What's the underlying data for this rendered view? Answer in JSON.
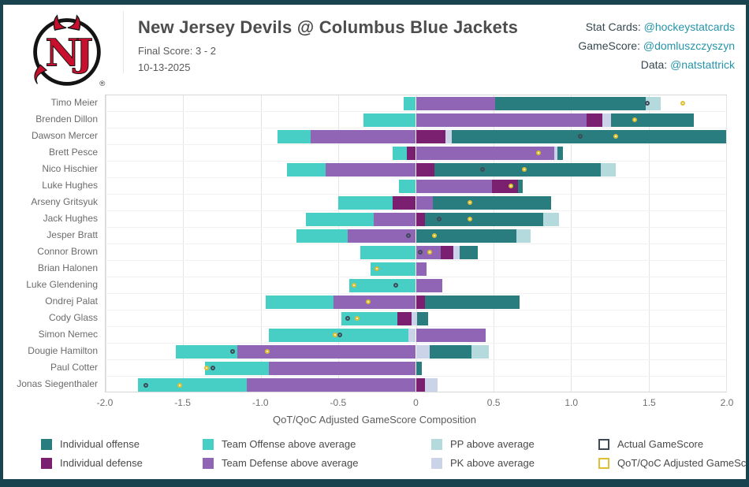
{
  "header": {
    "title": "New Jersey Devils @ Columbus Blue Jackets",
    "final_score": "Final Score: 3 - 2",
    "date": "10-13-2025",
    "credits": [
      {
        "label": "Stat Cards: ",
        "handle": "@hockeystatcards"
      },
      {
        "label": "GameScore: ",
        "handle": "@domluszczyszyn"
      },
      {
        "label": "Data: ",
        "handle": "@natstattrick"
      }
    ],
    "logo": "new-jersey-devils"
  },
  "colors": {
    "io": "#2a7d7e",
    "id": "#7b2071",
    "to": "#47cec5",
    "td": "#9065b5",
    "pp": "#b5dade",
    "pk": "#cbd3e8",
    "actual_outline": "#3e4a57",
    "adjusted_outline": "#dfc033",
    "adjusted_fill": "#fcf8e2",
    "frame": "#18434f",
    "link": "#2694a8",
    "logo_red": "#c8102e"
  },
  "chart_data": {
    "type": "bar",
    "orientation": "horizontal-stacked-diverging",
    "title": "",
    "xlabel": "QoT/QoC Adjusted GameScore Composition",
    "xlim": [
      -2.0,
      2.0
    ],
    "xticks": [
      -2.0,
      -1.5,
      -1.0,
      -0.5,
      0,
      0.5,
      1.0,
      1.5,
      2.0
    ],
    "xtick_labels": [
      "-2.0",
      "-1.5",
      "-1.0",
      "-0.5",
      "0",
      "0.5",
      "1.0",
      "1.5",
      "2.0"
    ],
    "grid": "vertical",
    "segment_keys": {
      "io": "Individual offense",
      "id": "Individual defense",
      "to": "Team Offense above average",
      "td": "Team Defense above average",
      "pp": "PP above average",
      "pk": "PK above average"
    },
    "players": [
      {
        "name": "Timo Meier",
        "segments": [
          {
            "key": "to",
            "from": -0.08,
            "to": 0
          },
          {
            "key": "td",
            "from": 0,
            "to": 0.51
          },
          {
            "key": "io",
            "from": 0.51,
            "to": 1.48
          },
          {
            "key": "pp",
            "from": 1.48,
            "to": 1.58
          }
        ],
        "actual": 1.49,
        "adjusted": 1.72
      },
      {
        "name": "Brenden Dillon",
        "segments": [
          {
            "key": "to",
            "from": -0.34,
            "to": 0
          },
          {
            "key": "td",
            "from": 0,
            "to": 1.1
          },
          {
            "key": "id",
            "from": 1.1,
            "to": 1.2
          },
          {
            "key": "pk",
            "from": 1.2,
            "to": 1.26
          },
          {
            "key": "io",
            "from": 1.26,
            "to": 1.79
          }
        ],
        "actual": 1.41,
        "adjusted": 1.41
      },
      {
        "name": "Dawson Mercer",
        "segments": [
          {
            "key": "to",
            "from": -0.89,
            "to": -0.68
          },
          {
            "key": "td",
            "from": -0.68,
            "to": 0
          },
          {
            "key": "id",
            "from": 0,
            "to": 0.19
          },
          {
            "key": "pk",
            "from": 0.19,
            "to": 0.23
          },
          {
            "key": "io",
            "from": 0.23,
            "to": 2.0
          }
        ],
        "actual": 1.06,
        "adjusted": 1.29
      },
      {
        "name": "Brett Pesce",
        "segments": [
          {
            "key": "to",
            "from": -0.15,
            "to": -0.06
          },
          {
            "key": "id",
            "from": -0.06,
            "to": 0
          },
          {
            "key": "td",
            "from": 0,
            "to": 0.89
          },
          {
            "key": "pk",
            "from": 0.89,
            "to": 0.91
          },
          {
            "key": "io",
            "from": 0.91,
            "to": 0.95
          }
        ],
        "actual": 0.79,
        "adjusted": 0.79
      },
      {
        "name": "Nico Hischier",
        "segments": [
          {
            "key": "to",
            "from": -0.83,
            "to": -0.58
          },
          {
            "key": "td",
            "from": -0.58,
            "to": 0
          },
          {
            "key": "id",
            "from": 0,
            "to": 0.12
          },
          {
            "key": "io",
            "from": 0.12,
            "to": 1.19
          },
          {
            "key": "pp",
            "from": 1.19,
            "to": 1.29
          }
        ],
        "actual": 0.43,
        "adjusted": 0.7
      },
      {
        "name": "Luke Hughes",
        "segments": [
          {
            "key": "to",
            "from": -0.11,
            "to": 0
          },
          {
            "key": "td",
            "from": 0,
            "to": 0.49
          },
          {
            "key": "id",
            "from": 0.49,
            "to": 0.66
          },
          {
            "key": "io",
            "from": 0.66,
            "to": 0.69
          }
        ],
        "actual": 0.63,
        "adjusted": 0.61
      },
      {
        "name": "Arseny Gritsyuk",
        "segments": [
          {
            "key": "to",
            "from": -0.5,
            "to": -0.15
          },
          {
            "key": "id",
            "from": -0.15,
            "to": 0
          },
          {
            "key": "td",
            "from": 0,
            "to": 0.11
          },
          {
            "key": "io",
            "from": 0.11,
            "to": 0.87
          }
        ],
        "actual": 0.35,
        "adjusted": 0.35
      },
      {
        "name": "Jack Hughes",
        "segments": [
          {
            "key": "to",
            "from": -0.71,
            "to": -0.27
          },
          {
            "key": "td",
            "from": -0.27,
            "to": 0
          },
          {
            "key": "id",
            "from": 0,
            "to": 0.06
          },
          {
            "key": "io",
            "from": 0.06,
            "to": 0.82
          },
          {
            "key": "pp",
            "from": 0.82,
            "to": 0.92
          }
        ],
        "actual": 0.15,
        "adjusted": 0.35
      },
      {
        "name": "Jesper Bratt",
        "segments": [
          {
            "key": "to",
            "from": -0.77,
            "to": -0.44
          },
          {
            "key": "td",
            "from": -0.44,
            "to": 0
          },
          {
            "key": "io",
            "from": 0,
            "to": 0.65
          },
          {
            "key": "pp",
            "from": 0.65,
            "to": 0.74
          }
        ],
        "actual": -0.05,
        "adjusted": 0.12
      },
      {
        "name": "Connor Brown",
        "segments": [
          {
            "key": "to",
            "from": -0.36,
            "to": 0
          },
          {
            "key": "td",
            "from": 0,
            "to": 0.16
          },
          {
            "key": "id",
            "from": 0.16,
            "to": 0.24
          },
          {
            "key": "pk",
            "from": 0.24,
            "to": 0.28
          },
          {
            "key": "io",
            "from": 0.28,
            "to": 0.4
          }
        ],
        "actual": 0.03,
        "adjusted": 0.09
      },
      {
        "name": "Brian Halonen",
        "segments": [
          {
            "key": "to",
            "from": -0.29,
            "to": 0
          },
          {
            "key": "td",
            "from": 0,
            "to": 0.07
          }
        ],
        "actual": -0.25,
        "adjusted": -0.25
      },
      {
        "name": "Luke Glendening",
        "segments": [
          {
            "key": "to",
            "from": -0.43,
            "to": 0
          },
          {
            "key": "td",
            "from": 0,
            "to": 0.17
          }
        ],
        "actual": -0.13,
        "adjusted": -0.4
      },
      {
        "name": "Ondrej Palat",
        "segments": [
          {
            "key": "to",
            "from": -0.97,
            "to": -0.53
          },
          {
            "key": "td",
            "from": -0.53,
            "to": 0
          },
          {
            "key": "id",
            "from": 0,
            "to": 0.06
          },
          {
            "key": "io",
            "from": 0.06,
            "to": 0.67
          }
        ],
        "actual": -0.31,
        "adjusted": -0.31
      },
      {
        "name": "Cody Glass",
        "segments": [
          {
            "key": "to",
            "from": -0.48,
            "to": -0.12
          },
          {
            "key": "id",
            "from": -0.12,
            "to": -0.03
          },
          {
            "key": "pk",
            "from": -0.03,
            "to": 0.01
          },
          {
            "key": "io",
            "from": 0.01,
            "to": 0.08
          }
        ],
        "actual": -0.44,
        "adjusted": -0.38
      },
      {
        "name": "Simon Nemec",
        "segments": [
          {
            "key": "to",
            "from": -0.95,
            "to": -0.05
          },
          {
            "key": "pk",
            "from": -0.05,
            "to": 0
          },
          {
            "key": "td",
            "from": 0,
            "to": 0.45
          }
        ],
        "actual": -0.49,
        "adjusted": -0.52
      },
      {
        "name": "Dougie Hamilton",
        "segments": [
          {
            "key": "to",
            "from": -1.55,
            "to": -1.15
          },
          {
            "key": "td",
            "from": -1.15,
            "to": 0
          },
          {
            "key": "pk",
            "from": 0,
            "to": 0.09
          },
          {
            "key": "io",
            "from": 0.09,
            "to": 0.36
          },
          {
            "key": "pp",
            "from": 0.36,
            "to": 0.47
          }
        ],
        "actual": -1.18,
        "adjusted": -0.96
      },
      {
        "name": "Paul Cotter",
        "segments": [
          {
            "key": "to",
            "from": -1.36,
            "to": -0.95
          },
          {
            "key": "td",
            "from": -0.95,
            "to": 0
          },
          {
            "key": "io",
            "from": 0,
            "to": 0.04
          }
        ],
        "actual": -1.31,
        "adjusted": -1.35
      },
      {
        "name": "Jonas Siegenthaler",
        "segments": [
          {
            "key": "to",
            "from": -1.79,
            "to": -1.09
          },
          {
            "key": "td",
            "from": -1.09,
            "to": 0
          },
          {
            "key": "id",
            "from": 0,
            "to": 0.06
          },
          {
            "key": "pk",
            "from": 0.06,
            "to": 0.14
          }
        ],
        "actual": -1.74,
        "adjusted": -1.52
      }
    ]
  },
  "legend": {
    "items": [
      {
        "key": "io",
        "label": "Individual offense",
        "fill": "#2a7d7e"
      },
      {
        "key": "to",
        "label": "Team Offense above average",
        "fill": "#47cec5"
      },
      {
        "key": "pp",
        "label": "PP above average",
        "fill": "#b5dade"
      },
      {
        "key": "actual",
        "label": "Actual GameScore",
        "fill": "#ffffff",
        "border": "#3e4a57"
      },
      {
        "key": "id",
        "label": "Individual defense",
        "fill": "#7b2071"
      },
      {
        "key": "td",
        "label": "Team Defense above average",
        "fill": "#9065b5"
      },
      {
        "key": "pk",
        "label": "PK above average",
        "fill": "#cbd3e8"
      },
      {
        "key": "adjusted",
        "label": "QoT/QoC Adjusted GameScore",
        "fill": "#ffffff",
        "border": "#dfc033"
      }
    ]
  }
}
